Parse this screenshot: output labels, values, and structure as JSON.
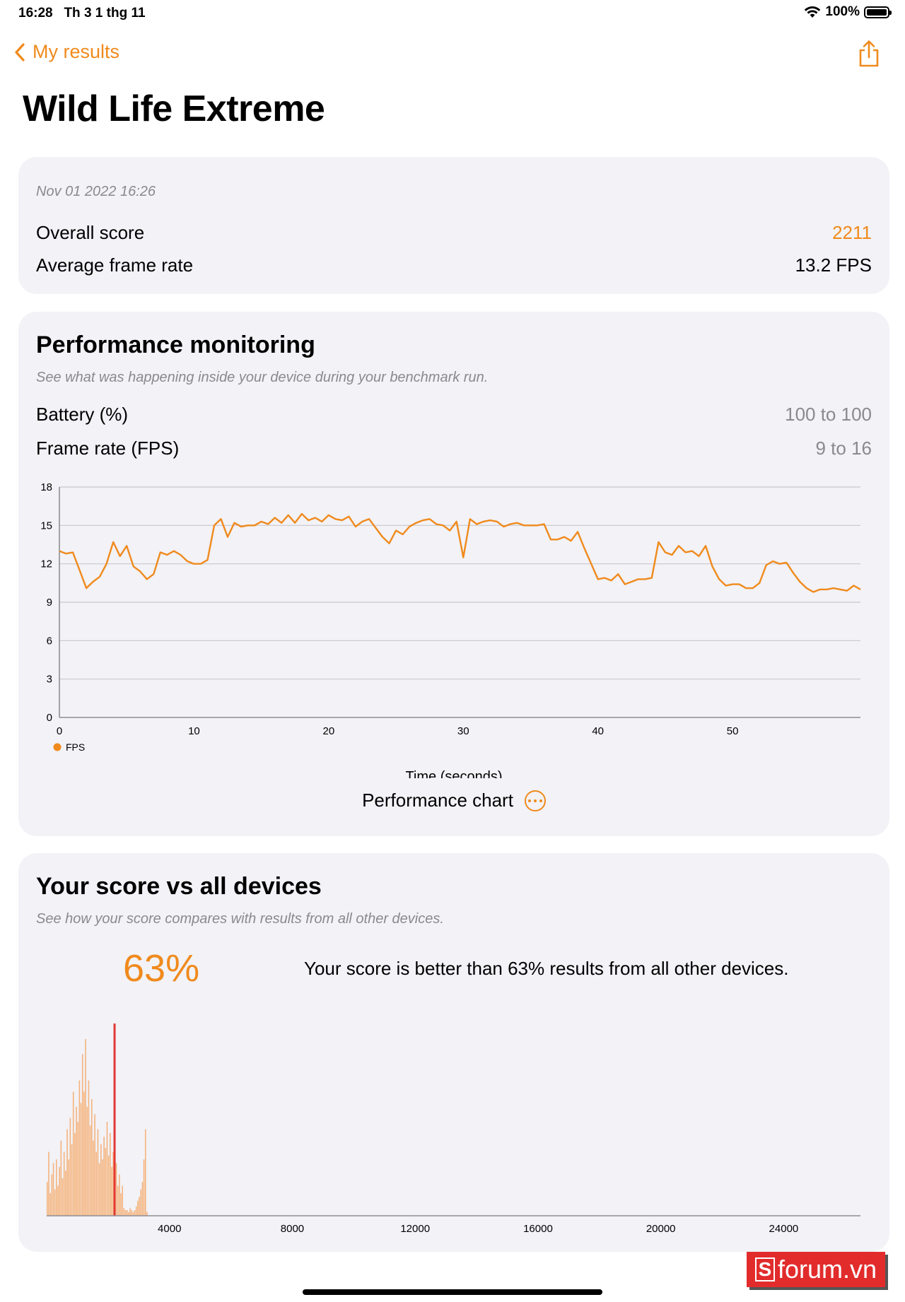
{
  "status_bar": {
    "time": "16:28",
    "date": "Th 3 1 thg 11",
    "battery_label": "100%",
    "battery_level": 1.0
  },
  "nav": {
    "back_label": "My results",
    "back_icon": "chevron-left-icon",
    "share_icon": "share-icon"
  },
  "page_title": "Wild Life Extreme",
  "summary": {
    "date": "Nov 01 2022 16:26",
    "overall_label": "Overall score",
    "overall_value": "2211",
    "fps_label": "Average frame rate",
    "fps_value": "13.2 FPS"
  },
  "performance": {
    "title": "Performance monitoring",
    "subtitle": "See what was happening inside your device during your benchmark run.",
    "battery_label": "Battery (%)",
    "battery_range": "100 to 100",
    "framerate_label": "Frame rate (FPS)",
    "framerate_range": "9 to 16",
    "chart_button_label": "Performance chart"
  },
  "comparison": {
    "title": "Your score vs all devices",
    "subtitle": "See how your score compares with results from all other devices.",
    "percent": "63%",
    "description": "Your score is better than 63% results from all other devices."
  },
  "watermark": {
    "letter": "S",
    "text": "forum.vn"
  },
  "colors": {
    "accent": "#f08a1c",
    "marker": "#e53935",
    "histogram": "#f5b27a",
    "grid": "#c8c8cc"
  },
  "chart_data": [
    {
      "type": "line",
      "xlabel": "Time (seconds)",
      "ylabel": "",
      "xlim": [
        0,
        59.5
      ],
      "ylim": [
        0,
        18
      ],
      "xticks": [
        0,
        10,
        20,
        30,
        40,
        50
      ],
      "yticks": [
        0,
        3,
        6,
        9,
        12,
        15,
        18
      ],
      "grid": true,
      "legend": "bottom-left",
      "series": [
        {
          "name": "FPS",
          "x": [
            0,
            0.5,
            1,
            1.5,
            2,
            2.5,
            3,
            3.5,
            4,
            4.5,
            5,
            5.5,
            6,
            6.5,
            7,
            7.5,
            8,
            8.5,
            9,
            9.5,
            10,
            10.5,
            11,
            11.5,
            12,
            12.5,
            13,
            13.5,
            14,
            14.5,
            15,
            15.5,
            16,
            16.5,
            17,
            17.5,
            18,
            18.5,
            19,
            19.5,
            20,
            20.5,
            21,
            21.5,
            22,
            22.5,
            23,
            23.5,
            24,
            24.5,
            25,
            25.5,
            26,
            26.5,
            27,
            27.5,
            28,
            28.5,
            29,
            29.5,
            30,
            30.5,
            31,
            31.5,
            32,
            32.5,
            33,
            33.5,
            34,
            34.5,
            35,
            35.5,
            36,
            36.5,
            37,
            37.5,
            38,
            38.5,
            39,
            39.5,
            40,
            40.5,
            41,
            41.5,
            42,
            42.5,
            43,
            43.5,
            44,
            44.5,
            45,
            45.5,
            46,
            46.5,
            47,
            47.5,
            48,
            48.5,
            49,
            49.5,
            50,
            50.5,
            51,
            51.5,
            52,
            52.5,
            53,
            53.5,
            54,
            54.5,
            55,
            55.5,
            56,
            56.5,
            57,
            57.5,
            58,
            58.5,
            59,
            59.5
          ],
          "y": [
            13,
            12.8,
            12.9,
            11.5,
            10.1,
            10.6,
            11,
            12,
            13.7,
            12.6,
            13.4,
            11.8,
            11.4,
            10.8,
            11.2,
            12.9,
            12.7,
            13,
            12.7,
            12.2,
            12,
            12,
            12.3,
            15,
            15.5,
            14.1,
            15.2,
            14.9,
            15,
            15,
            15.3,
            15.1,
            15.6,
            15.2,
            15.8,
            15.2,
            15.9,
            15.4,
            15.6,
            15.3,
            15.8,
            15.5,
            15.4,
            15.7,
            14.9,
            15.3,
            15.5,
            14.8,
            14.1,
            13.6,
            14.6,
            14.3,
            14.9,
            15.2,
            15.4,
            15.5,
            15.1,
            15,
            14.6,
            15.3,
            12.5,
            15.5,
            15.1,
            15.3,
            15.4,
            15.3,
            14.9,
            15.1,
            15.2,
            15,
            15,
            15,
            15.1,
            13.9,
            13.9,
            14.1,
            13.8,
            14.5,
            13.2,
            12,
            10.8,
            10.9,
            10.7,
            11.2,
            10.4,
            10.6,
            10.8,
            10.8,
            10.9,
            13.7,
            12.9,
            12.7,
            13.4,
            12.9,
            13,
            12.6,
            13.4,
            11.8,
            10.8,
            10.3,
            10.4,
            10.4,
            10.1,
            10.1,
            10.5,
            11.9,
            12.2,
            12,
            12.1,
            11.3,
            10.6,
            10.1,
            9.8,
            10,
            10,
            10.1,
            10,
            9.9,
            10.3,
            10
          ]
        }
      ]
    },
    {
      "type": "bar",
      "xlabel": "",
      "ylabel": "",
      "xlim": [
        0,
        26500
      ],
      "xticks": [
        4000,
        8000,
        12000,
        16000,
        20000,
        24000
      ],
      "grid": false,
      "user_score": 2211,
      "bin_width": 50,
      "bin_start": 0,
      "values": [
        18,
        34,
        12,
        22,
        28,
        14,
        30,
        16,
        26,
        40,
        20,
        34,
        24,
        46,
        30,
        52,
        38,
        66,
        44,
        58,
        50,
        72,
        60,
        86,
        66,
        94,
        58,
        72,
        48,
        62,
        40,
        54,
        34,
        46,
        28,
        38,
        30,
        42,
        36,
        50,
        32,
        44,
        26,
        34,
        20,
        28,
        16,
        22,
        12,
        16,
        4,
        3,
        3,
        2,
        4,
        3,
        2,
        3,
        5,
        8,
        10,
        14,
        18,
        30,
        46,
        2
      ]
    }
  ]
}
